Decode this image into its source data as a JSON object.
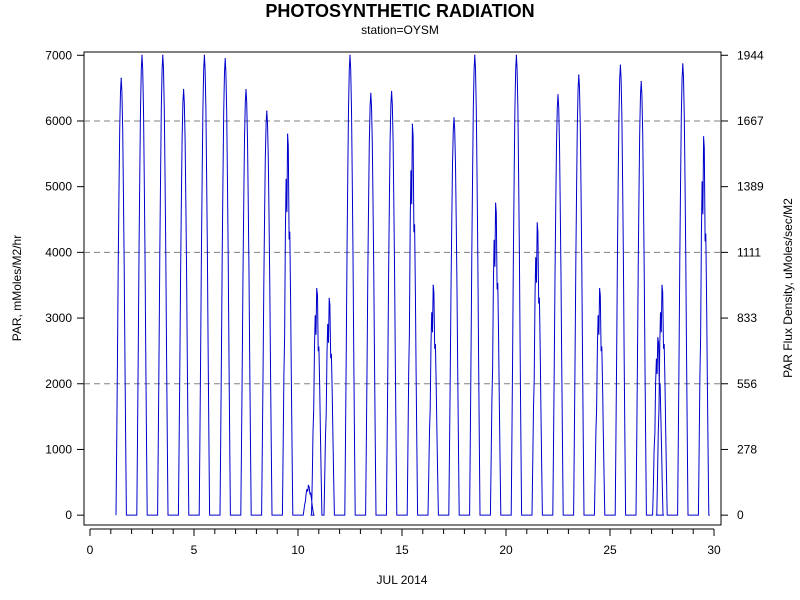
{
  "chart_data": {
    "type": "line",
    "title": "PHOTOSYNTHETIC RADIATION",
    "subtitle": "station=OYSM",
    "xlabel": "JUL 2014",
    "ylabel": "PAR, mMoles/M2/hr",
    "y2label": "PAR Flux Density, uMoles/sec/M2",
    "xlim": [
      0,
      30
    ],
    "ylim": [
      -150,
      7050
    ],
    "x_ticks": [
      0,
      5,
      10,
      15,
      20,
      25,
      30
    ],
    "y_ticks": [
      0,
      1000,
      2000,
      3000,
      4000,
      5000,
      6000,
      7000
    ],
    "y2_ticks": [
      {
        "value": 0,
        "label": "0"
      },
      {
        "value": 1000,
        "label": "278"
      },
      {
        "value": 2000,
        "label": "556"
      },
      {
        "value": 3000,
        "label": "833"
      },
      {
        "value": 4000,
        "label": "1111"
      },
      {
        "value": 5000,
        "label": "1389"
      },
      {
        "value": 6000,
        "label": "1667"
      },
      {
        "value": 7000,
        "label": "1944"
      }
    ],
    "gridlines_y": [
      2000,
      4000,
      6000
    ],
    "grid": "dashed horizontal at 2000, 4000, 6000",
    "series": [
      {
        "color": "#0000cc",
        "daily_peaks": [
          {
            "day": 1,
            "peak": 6650
          },
          {
            "day": 2,
            "peak": 7000
          },
          {
            "day": 3,
            "peak": 7000
          },
          {
            "day": 4,
            "peak": 6480
          },
          {
            "day": 5,
            "peak": 7000
          },
          {
            "day": 6,
            "peak": 6950
          },
          {
            "day": 7,
            "peak": 6480
          },
          {
            "day": 8,
            "peak": 6150
          },
          {
            "day": 9,
            "peak": 5800
          },
          {
            "day": 10,
            "peak": 450
          },
          {
            "day": 10.4,
            "peak": 3450
          },
          {
            "day": 11,
            "peak": 3300
          },
          {
            "day": 12,
            "peak": 7000
          },
          {
            "day": 13,
            "peak": 6420
          },
          {
            "day": 14,
            "peak": 6450
          },
          {
            "day": 15,
            "peak": 5950
          },
          {
            "day": 16,
            "peak": 3500
          },
          {
            "day": 17,
            "peak": 6050
          },
          {
            "day": 18,
            "peak": 7000
          },
          {
            "day": 19,
            "peak": 4750
          },
          {
            "day": 20,
            "peak": 7000
          },
          {
            "day": 21,
            "peak": 4450
          },
          {
            "day": 22,
            "peak": 6400
          },
          {
            "day": 23,
            "peak": 6700
          },
          {
            "day": 24,
            "peak": 3450
          },
          {
            "day": 25,
            "peak": 6850
          },
          {
            "day": 26,
            "peak": 6600
          },
          {
            "day": 26.8,
            "peak": 2700
          },
          {
            "day": 27,
            "peak": 3500
          },
          {
            "day": 28,
            "peak": 6870
          },
          {
            "day": 29,
            "peak": 5760
          }
        ]
      }
    ]
  }
}
